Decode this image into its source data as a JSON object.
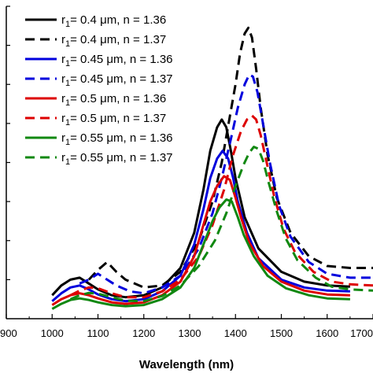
{
  "chart_data": {
    "type": "line",
    "title": "",
    "xlabel": "Wavelength (nm)",
    "ylabel": "",
    "xlim": [
      900,
      1700
    ],
    "ylim": [
      0,
      8
    ],
    "x_ticks": [
      "900",
      "1000",
      "1100",
      "1200",
      "1300",
      "1400",
      "1500",
      "1600",
      "1700"
    ],
    "legend_position": "top-left",
    "grid": false,
    "series": [
      {
        "name": "r1= 0.4 μm, n = 1.36",
        "color": "#000000",
        "dash": "solid",
        "x": [
          1000,
          1020,
          1040,
          1060,
          1080,
          1100,
          1130,
          1160,
          1200,
          1240,
          1280,
          1310,
          1330,
          1345,
          1360,
          1370,
          1380,
          1390,
          1400,
          1420,
          1450,
          1500,
          1550,
          1600,
          1650
        ],
        "y": [
          0.6,
          0.85,
          1.0,
          1.05,
          0.9,
          0.75,
          0.6,
          0.55,
          0.6,
          0.8,
          1.3,
          2.2,
          3.3,
          4.3,
          4.9,
          5.1,
          4.9,
          4.3,
          3.6,
          2.6,
          1.8,
          1.2,
          0.95,
          0.85,
          0.82
        ]
      },
      {
        "name": "r1= 0.4 μm, n = 1.37",
        "color": "#000000",
        "dash": "dashed",
        "x": [
          1080,
          1100,
          1120,
          1140,
          1160,
          1200,
          1240,
          1280,
          1320,
          1350,
          1370,
          1385,
          1400,
          1410,
          1420,
          1428,
          1436,
          1445,
          1455,
          1470,
          1490,
          1520,
          1560,
          1600,
          1650,
          1700
        ],
        "y": [
          1.0,
          1.25,
          1.45,
          1.2,
          1.0,
          0.8,
          0.85,
          1.2,
          2.0,
          3.0,
          4.0,
          5.0,
          6.0,
          6.8,
          7.3,
          7.45,
          7.2,
          6.4,
          5.4,
          4.2,
          3.1,
          2.2,
          1.6,
          1.35,
          1.3,
          1.3
        ]
      },
      {
        "name": "r1= 0.45 μm, n = 1.36",
        "color": "#0000dd",
        "dash": "solid",
        "x": [
          1000,
          1020,
          1040,
          1060,
          1080,
          1100,
          1130,
          1160,
          1200,
          1240,
          1280,
          1310,
          1330,
          1345,
          1360,
          1372,
          1384,
          1395,
          1405,
          1425,
          1450,
          1500,
          1550,
          1600,
          1650
        ],
        "y": [
          0.45,
          0.65,
          0.8,
          0.85,
          0.75,
          0.62,
          0.5,
          0.45,
          0.5,
          0.7,
          1.1,
          1.9,
          2.8,
          3.6,
          4.1,
          4.3,
          4.1,
          3.6,
          3.0,
          2.2,
          1.55,
          1.0,
          0.8,
          0.72,
          0.7
        ]
      },
      {
        "name": "r1= 0.45 μm, n = 1.37",
        "color": "#0000dd",
        "dash": "dashed",
        "x": [
          1060,
          1080,
          1100,
          1120,
          1140,
          1170,
          1200,
          1240,
          1280,
          1320,
          1350,
          1370,
          1390,
          1405,
          1420,
          1430,
          1438,
          1448,
          1460,
          1475,
          1495,
          1520,
          1560,
          1600,
          1650,
          1700
        ],
        "y": [
          0.9,
          1.0,
          1.15,
          1.0,
          0.85,
          0.7,
          0.65,
          0.8,
          1.1,
          1.8,
          2.7,
          3.6,
          4.6,
          5.4,
          6.0,
          6.25,
          6.2,
          5.8,
          5.0,
          4.0,
          2.9,
          2.1,
          1.45,
          1.15,
          1.05,
          1.05
        ]
      },
      {
        "name": "r1= 0.5 μm, n = 1.36",
        "color": "#dd0000",
        "dash": "solid",
        "x": [
          1000,
          1020,
          1040,
          1060,
          1080,
          1100,
          1130,
          1160,
          1200,
          1240,
          1280,
          1310,
          1330,
          1345,
          1360,
          1375,
          1388,
          1400,
          1412,
          1430,
          1460,
          1500,
          1550,
          1600,
          1650
        ],
        "y": [
          0.35,
          0.5,
          0.6,
          0.65,
          0.6,
          0.52,
          0.42,
          0.38,
          0.42,
          0.6,
          0.95,
          1.6,
          2.4,
          3.0,
          3.4,
          3.65,
          3.55,
          3.1,
          2.6,
          1.95,
          1.35,
          0.95,
          0.72,
          0.62,
          0.6
        ]
      },
      {
        "name": "r1= 0.5 μm, n = 1.37",
        "color": "#dd0000",
        "dash": "dashed",
        "x": [
          1040,
          1060,
          1080,
          1100,
          1130,
          1160,
          1200,
          1240,
          1280,
          1320,
          1350,
          1375,
          1395,
          1412,
          1425,
          1436,
          1445,
          1455,
          1468,
          1485,
          1505,
          1530,
          1570,
          1610,
          1650,
          1700
        ],
        "y": [
          0.6,
          0.72,
          0.8,
          0.78,
          0.65,
          0.55,
          0.55,
          0.7,
          1.0,
          1.6,
          2.4,
          3.3,
          4.2,
          4.8,
          5.1,
          5.2,
          5.1,
          4.7,
          4.0,
          3.1,
          2.3,
          1.7,
          1.2,
          0.95,
          0.88,
          0.85
        ]
      },
      {
        "name": "r1= 0.55 μm, n = 1.36",
        "color": "#118811",
        "dash": "solid",
        "x": [
          1000,
          1020,
          1040,
          1060,
          1080,
          1100,
          1130,
          1160,
          1200,
          1240,
          1280,
          1310,
          1330,
          1350,
          1365,
          1380,
          1392,
          1405,
          1418,
          1440,
          1470,
          1510,
          1560,
          1600,
          1650
        ],
        "y": [
          0.25,
          0.38,
          0.48,
          0.52,
          0.48,
          0.42,
          0.35,
          0.32,
          0.35,
          0.5,
          0.8,
          1.3,
          1.9,
          2.5,
          2.85,
          3.05,
          3.0,
          2.6,
          2.15,
          1.6,
          1.1,
          0.78,
          0.6,
          0.52,
          0.5
        ]
      },
      {
        "name": "r1= 0.55 μm, n = 1.37",
        "color": "#118811",
        "dash": "dashed",
        "x": [
          1040,
          1060,
          1080,
          1100,
          1130,
          1160,
          1200,
          1240,
          1280,
          1320,
          1355,
          1380,
          1400,
          1418,
          1430,
          1440,
          1450,
          1460,
          1472,
          1490,
          1510,
          1535,
          1575,
          1610,
          1650,
          1700
        ],
        "y": [
          0.5,
          0.6,
          0.66,
          0.64,
          0.55,
          0.46,
          0.45,
          0.58,
          0.85,
          1.35,
          2.0,
          2.7,
          3.4,
          3.95,
          4.25,
          4.4,
          4.35,
          4.05,
          3.5,
          2.75,
          2.05,
          1.5,
          1.05,
          0.82,
          0.75,
          0.72
        ]
      }
    ]
  }
}
